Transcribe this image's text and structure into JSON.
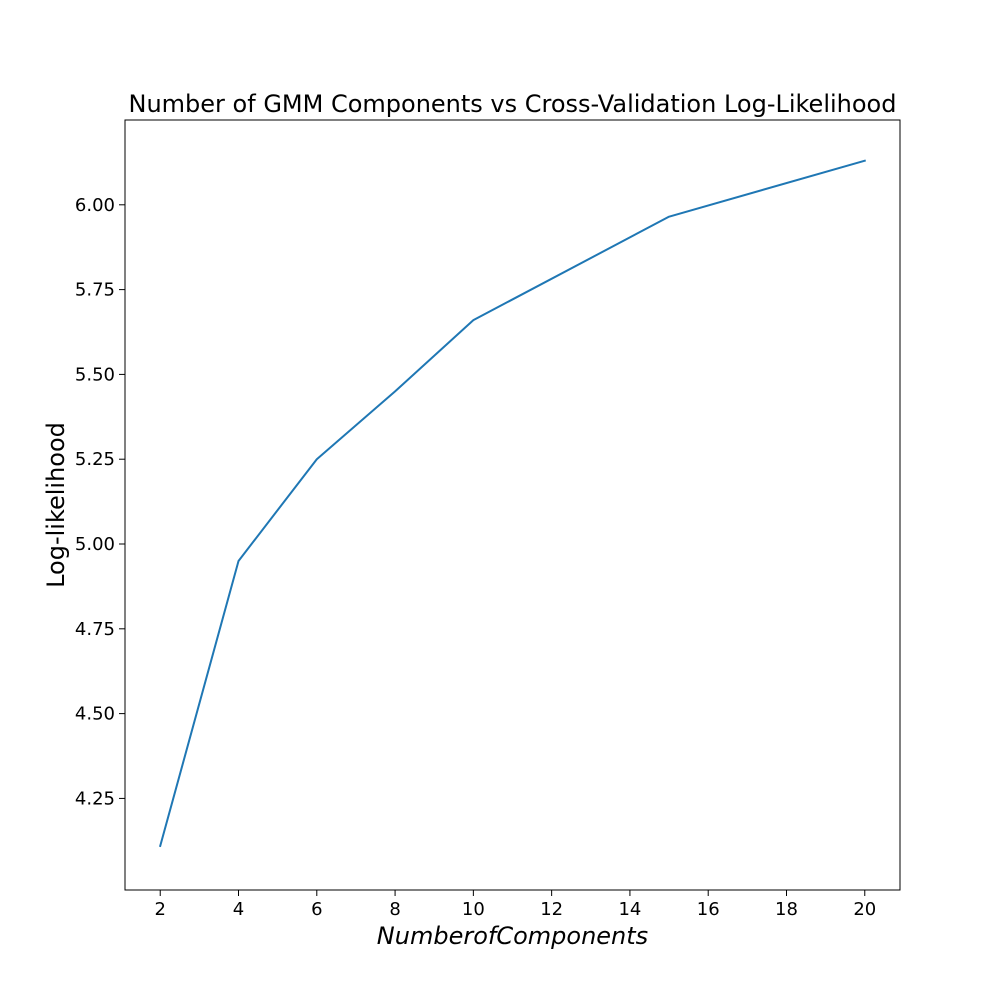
{
  "chart_data": {
    "type": "line",
    "title": "Number of GMM Components vs Cross-Validation Log-Likelihood",
    "xlabel": "NumberofComponents",
    "ylabel": "Log-likelihood",
    "xlim": [
      1.1,
      20.9
    ],
    "ylim": [
      3.98,
      6.25
    ],
    "xticks": [
      2,
      4,
      6,
      8,
      10,
      12,
      14,
      16,
      18,
      20
    ],
    "xtick_labels": [
      "2",
      "4",
      "6",
      "8",
      "10",
      "12",
      "14",
      "16",
      "18",
      "20"
    ],
    "yticks": [
      4.25,
      4.5,
      4.75,
      5.0,
      5.25,
      5.5,
      5.75,
      6.0
    ],
    "ytick_labels": [
      "4.25",
      "4.50",
      "4.75",
      "5.00",
      "5.25",
      "5.50",
      "5.75",
      "6.00"
    ],
    "grid": false,
    "series": [
      {
        "color": "#1f77b4",
        "x": [
          2,
          4,
          6,
          8,
          10,
          15,
          20
        ],
        "y": [
          4.11,
          4.95,
          5.25,
          5.45,
          5.66,
          5.965,
          6.13
        ]
      }
    ]
  }
}
